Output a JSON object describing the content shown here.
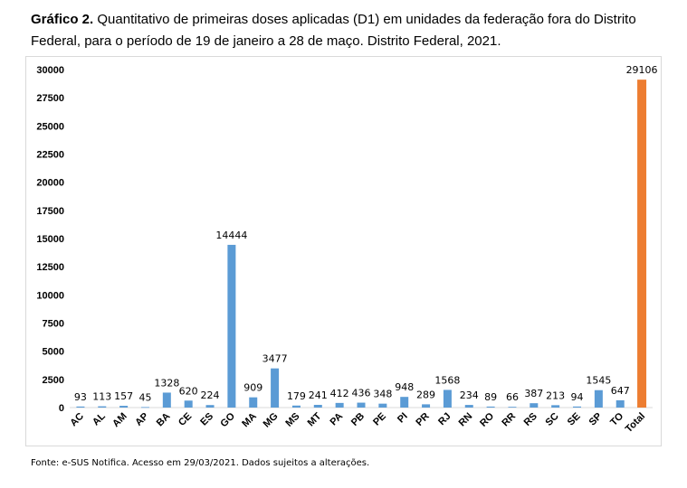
{
  "caption": {
    "label": "Gráfico 2.",
    "text": " Quantitativo de primeiras doses aplicadas (D1) em unidades da federação fora do Distrito Federal, para o período de 19 de janeiro a 28 de maço. Distrito Federal, 2021."
  },
  "source": "Fonte: e-SUS Notifica. Acesso em 29/03/2021. Dados sujeitos a alterações.",
  "colors": {
    "bar": "#5b9bd5",
    "total_bar": "#ed7d31",
    "axis": "#d9d9d9"
  },
  "chart_data": {
    "type": "bar",
    "title": "",
    "xlabel": "",
    "ylabel": "",
    "categories": [
      "AC",
      "AL",
      "AM",
      "AP",
      "BA",
      "CE",
      "ES",
      "GO",
      "MA",
      "MG",
      "MS",
      "MT",
      "PA",
      "PB",
      "PE",
      "PI",
      "PR",
      "RJ",
      "RN",
      "RO",
      "RR",
      "RS",
      "SC",
      "SE",
      "SP",
      "TO",
      "Total"
    ],
    "values": [
      93,
      113,
      157,
      45,
      1328,
      620,
      224,
      14444,
      909,
      3477,
      179,
      241,
      412,
      436,
      348,
      948,
      289,
      1568,
      234,
      89,
      66,
      387,
      213,
      94,
      1545,
      647,
      29106
    ],
    "ylim": [
      0,
      30000
    ],
    "yticks": [
      0,
      2500,
      5000,
      7500,
      10000,
      12500,
      15000,
      17500,
      20000,
      22500,
      25000,
      27500,
      30000
    ],
    "gridlines": false,
    "legend": "none",
    "data_labels": true
  }
}
